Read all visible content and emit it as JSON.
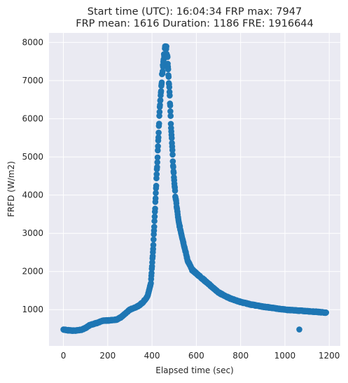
{
  "chart_data": {
    "type": "scatter",
    "title_line1": "Start time (UTC): 16:04:34 FRP max: 7947",
    "title_line2": "FRP mean: 1616 Duration: 1186 FRE: 1916644",
    "xlabel": "Elapsed time (sec)",
    "ylabel": "FRFD (W/m2)",
    "xlim": [
      -65,
      1250
    ],
    "ylim": [
      50,
      8250
    ],
    "xticks": [
      0,
      200,
      400,
      600,
      800,
      1000,
      1200
    ],
    "yticks": [
      1000,
      2000,
      3000,
      4000,
      5000,
      6000,
      7000,
      8000
    ],
    "grid": true,
    "colors": {
      "background": "#eaeaf2",
      "grid": "#ffffff",
      "marker": "#1f77b4"
    },
    "control_points": [
      [
        0,
        480
      ],
      [
        20,
        460
      ],
      [
        40,
        450
      ],
      [
        60,
        455
      ],
      [
        80,
        470
      ],
      [
        100,
        520
      ],
      [
        120,
        600
      ],
      [
        150,
        650
      ],
      [
        180,
        710
      ],
      [
        210,
        720
      ],
      [
        240,
        740
      ],
      [
        260,
        800
      ],
      [
        280,
        900
      ],
      [
        300,
        1000
      ],
      [
        320,
        1050
      ],
      [
        340,
        1100
      ],
      [
        360,
        1200
      ],
      [
        380,
        1350
      ],
      [
        395,
        1700
      ],
      [
        405,
        2600
      ],
      [
        415,
        3800
      ],
      [
        425,
        5000
      ],
      [
        435,
        6300
      ],
      [
        445,
        7100
      ],
      [
        455,
        7700
      ],
      [
        462,
        7947
      ],
      [
        470,
        7600
      ],
      [
        478,
        6800
      ],
      [
        486,
        5800
      ],
      [
        495,
        4800
      ],
      [
        505,
        4000
      ],
      [
        520,
        3300
      ],
      [
        540,
        2800
      ],
      [
        560,
        2300
      ],
      [
        580,
        2050
      ],
      [
        600,
        1950
      ],
      [
        630,
        1800
      ],
      [
        660,
        1650
      ],
      [
        700,
        1450
      ],
      [
        750,
        1300
      ],
      [
        800,
        1200
      ],
      [
        850,
        1130
      ],
      [
        900,
        1080
      ],
      [
        950,
        1040
      ],
      [
        1000,
        1000
      ],
      [
        1050,
        980
      ],
      [
        1100,
        960
      ],
      [
        1150,
        940
      ],
      [
        1186,
        920
      ]
    ],
    "outliers": [
      [
        1065,
        480
      ]
    ],
    "n_points": 1187
  }
}
